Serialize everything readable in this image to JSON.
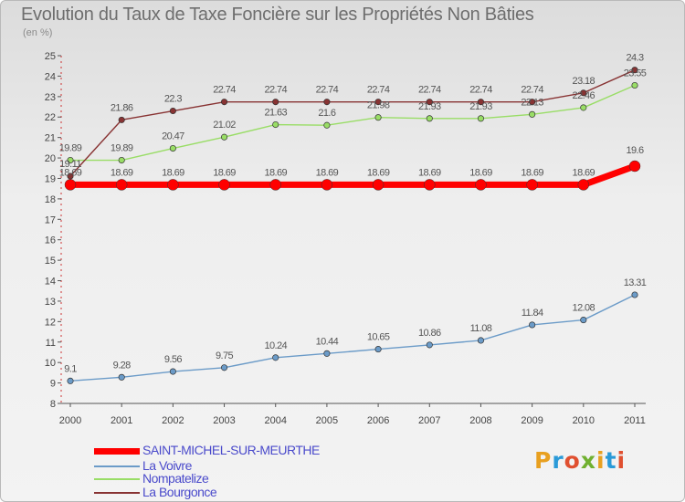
{
  "header": {
    "title": "Evolution du Taux de Taxe Foncière sur les Propriétés Non Bâties",
    "subtitle": "(en %)"
  },
  "logo": {
    "text": "Proxiti",
    "colors": [
      "#e8a020",
      "#2a9ad8",
      "#e05030",
      "#70b030",
      "#e8a020",
      "#2a9ad8",
      "#e05030"
    ]
  },
  "chart_data": {
    "type": "line",
    "title": "Evolution du Taux de Taxe Foncière sur les Propriétés Non Bâties",
    "ylabel": "(en %)",
    "xlabel": "",
    "x": [
      "2000",
      "2001",
      "2002",
      "2003",
      "2004",
      "2005",
      "2006",
      "2007",
      "2008",
      "2009",
      "2010",
      "2011"
    ],
    "ylim": [
      8,
      25
    ],
    "yticks": [
      "8",
      "9",
      "10",
      "11",
      "12",
      "13",
      "14",
      "15",
      "16",
      "17",
      "18",
      "19",
      "20",
      "21",
      "22",
      "23",
      "24",
      "25"
    ],
    "grid": false,
    "legend": "bottom-left",
    "series": [
      {
        "name": "SAINT-MICHEL-SUR-MEURTHE",
        "color": "#ff0000",
        "values": [
          18.69,
          18.69,
          18.69,
          18.69,
          18.69,
          18.69,
          18.69,
          18.69,
          18.69,
          18.69,
          18.69,
          19.6
        ],
        "labels": [
          "18.69",
          "18.69",
          "18.69",
          "18.69",
          "18.69",
          "18.69",
          "18.69",
          "18.69",
          "18.69",
          "18.69",
          "18.69",
          "19.6"
        ]
      },
      {
        "name": "La Voivre",
        "color": "#6b9bc8",
        "values": [
          9.1,
          9.28,
          9.56,
          9.75,
          10.24,
          10.44,
          10.65,
          10.86,
          11.08,
          11.84,
          12.08,
          13.31
        ],
        "labels": [
          "9.1",
          "9.28",
          "9.56",
          "9.75",
          "10.24",
          "10.44",
          "10.65",
          "10.86",
          "11.08",
          "11.84",
          "12.08",
          "13.31"
        ]
      },
      {
        "name": "Nompatelize",
        "color": "#99dd66",
        "values": [
          19.89,
          19.89,
          20.47,
          21.02,
          21.63,
          21.6,
          21.98,
          21.93,
          21.93,
          22.13,
          22.46,
          23.55
        ],
        "labels": [
          "19.89",
          "19.89",
          "20.47",
          "21.02",
          "21.63",
          "21.6",
          "21.98",
          "21.93",
          "21.93",
          "22.13",
          "22.46",
          "23.55"
        ]
      },
      {
        "name": "La Bourgonce",
        "color": "#883333",
        "values": [
          19.11,
          21.86,
          22.3,
          22.74,
          22.74,
          22.74,
          22.74,
          22.74,
          22.74,
          22.74,
          23.18,
          24.3
        ],
        "labels": [
          "19.11",
          "21.86",
          "22.3",
          "22.74",
          "22.74",
          "22.74",
          "22.74",
          "22.74",
          "22.74",
          "22.74",
          "23.18",
          "24.3"
        ]
      }
    ]
  }
}
